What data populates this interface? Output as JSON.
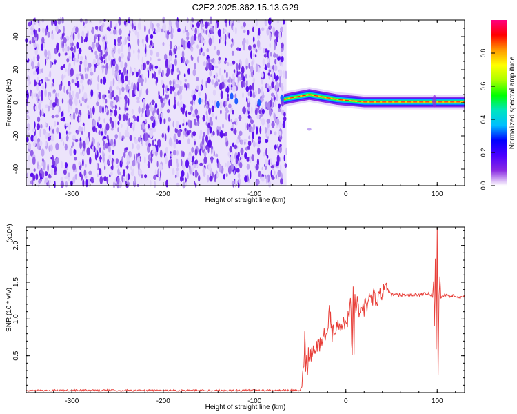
{
  "title": "C2E2.2025.362.15.13.G29",
  "chart_data": [
    {
      "type": "heatmap",
      "xlabel": "Height of straight line (km)",
      "ylabel": "Frequency (Hz)",
      "xlim": [
        -350,
        130
      ],
      "ylim": [
        -50,
        50
      ],
      "x_ticks": [
        -300,
        -200,
        -100,
        0,
        100
      ],
      "x_tick_labels": [
        "-300",
        "-200",
        "-100",
        "0",
        "100"
      ],
      "y_ticks": [
        -40,
        -20,
        0,
        20,
        40
      ],
      "y_tick_labels": [
        "-40",
        "-20",
        "0",
        "20",
        "40"
      ],
      "noise_region_x": [
        -350,
        -65
      ],
      "signal_ridge": {
        "x": [
          -68,
          -60,
          -50,
          -40,
          -30,
          -20,
          -10,
          0,
          10,
          20,
          40,
          60,
          80,
          95,
          100,
          130
        ],
        "freq": [
          2,
          3,
          4,
          5,
          4,
          3,
          2,
          1.5,
          1,
          0.5,
          0.5,
          0.5,
          0.5,
          0.5,
          0.5,
          0.5
        ]
      },
      "colorbar": {
        "label": "Normalized spectral amplitude",
        "range": [
          0,
          1
        ],
        "ticks": [
          0.0,
          0.2,
          0.4,
          0.6,
          0.8
        ],
        "tick_labels": [
          "0.0",
          "0.2",
          "0.4",
          "0.6",
          "0.8"
        ],
        "colors": [
          "#ffffff",
          "#8a2be2",
          "#4b00ff",
          "#0000ff",
          "#00bfff",
          "#00e5c0",
          "#00ff00",
          "#aaff00",
          "#ffff00",
          "#ff9900",
          "#ff0000",
          "#ff0080"
        ]
      }
    },
    {
      "type": "line",
      "xlabel": "Height of straight line (km)",
      "ylabel": "SNR (10 * v/v)",
      "y_multiplier": "(x10⁴)",
      "xlim": [
        -350,
        130
      ],
      "ylim": [
        0,
        2.25
      ],
      "x_ticks": [
        -300,
        -200,
        -100,
        0,
        100
      ],
      "x_tick_labels": [
        "-300",
        "-200",
        "-100",
        "0",
        "100"
      ],
      "y_ticks": [
        0.5,
        1.0,
        1.5,
        2.0
      ],
      "y_tick_labels": [
        "0.5",
        "1.0",
        "1.5",
        "2.0"
      ],
      "color": "#e8403a",
      "series": [
        {
          "x": [
            -350,
            -300,
            -250,
            -200,
            -150,
            -100,
            -50,
            -48,
            -46,
            -45,
            -44,
            -43,
            -42,
            -41,
            -40,
            -38,
            -35,
            -32,
            -30,
            -25,
            -20,
            -18,
            -15,
            -10,
            -5,
            0,
            3,
            5,
            7,
            8,
            9,
            10,
            11,
            12,
            15,
            20,
            25,
            30,
            35,
            40,
            45,
            50,
            60,
            70,
            80,
            90,
            95,
            96,
            97,
            98,
            99,
            100,
            101,
            102,
            103,
            104,
            105,
            110,
            120,
            130
          ],
          "y": [
            0.03,
            0.03,
            0.03,
            0.03,
            0.03,
            0.03,
            0.03,
            0.08,
            0.4,
            0.85,
            0.3,
            0.6,
            0.15,
            0.5,
            0.45,
            0.5,
            0.55,
            0.6,
            0.65,
            0.75,
            0.85,
            1.1,
            0.8,
            0.9,
            0.9,
            0.95,
            1.05,
            1.3,
            0.5,
            1.5,
            0.6,
            1.45,
            1.0,
            1.25,
            1.1,
            1.15,
            1.25,
            1.3,
            1.3,
            1.35,
            1.4,
            1.33,
            1.33,
            1.33,
            1.33,
            1.34,
            1.32,
            1.5,
            0.9,
            1.8,
            0.6,
            2.25,
            0.25,
            1.3,
            1.6,
            1.3,
            1.32,
            1.32,
            1.31,
            1.3
          ]
        }
      ]
    }
  ]
}
